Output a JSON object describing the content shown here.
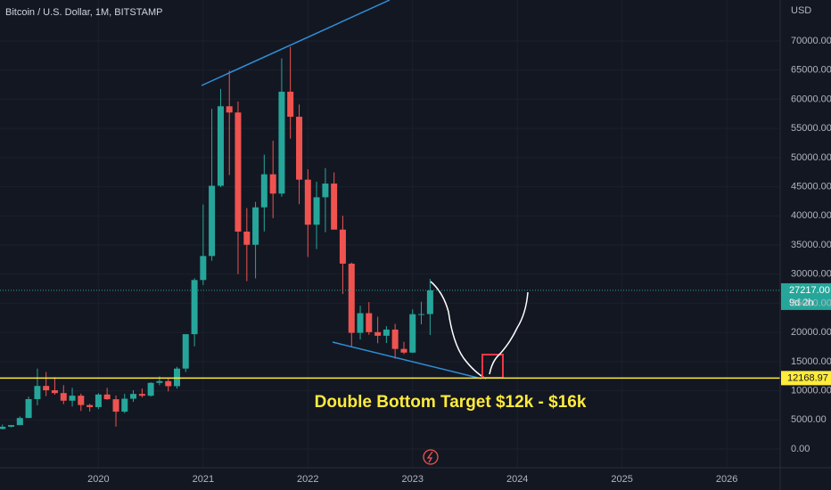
{
  "chart_data": {
    "type": "candlestick",
    "title": "Bitcoin / U.S. Dollar, 1M, BITSTAMP",
    "currency": "USD",
    "up_color": "#26a69a",
    "down_color": "#ef5350",
    "grid": true,
    "x": [
      2019.083,
      2019.167,
      2019.25,
      2019.333,
      2019.417,
      2019.5,
      2019.583,
      2019.667,
      2019.75,
      2019.833,
      2019.917,
      2020,
      2020.083,
      2020.167,
      2020.25,
      2020.333,
      2020.417,
      2020.5,
      2020.583,
      2020.667,
      2020.75,
      2020.833,
      2020.917,
      2021,
      2021.083,
      2021.167,
      2021.25,
      2021.333,
      2021.417,
      2021.5,
      2021.583,
      2021.667,
      2021.75,
      2021.833,
      2021.917,
      2022,
      2022.083,
      2022.167,
      2022.25,
      2022.333,
      2022.417,
      2022.5,
      2022.583,
      2022.667,
      2022.75,
      2022.833,
      2022.917,
      2023,
      2023.083,
      2023.167
    ],
    "open": [
      3440,
      3820,
      4100,
      5320,
      8560,
      10820,
      10080,
      9600,
      8290,
      9150,
      7540,
      7190,
      9350,
      8540,
      6410,
      8630,
      9450,
      9140,
      11350,
      11650,
      10780,
      13800,
      19700,
      28990,
      33110,
      45160,
      58800,
      57730,
      37300,
      35040,
      41460,
      47130,
      43820,
      61300,
      57000,
      46210,
      38480,
      43190,
      45540,
      37640,
      31800,
      19930,
      23300,
      20050,
      19430,
      20490,
      17170,
      16540,
      23130,
      23150
    ],
    "high": [
      4200,
      4100,
      5600,
      9000,
      13800,
      13200,
      12330,
      10950,
      10500,
      9500,
      7750,
      9580,
      10500,
      9180,
      9470,
      10080,
      10380,
      11440,
      12470,
      12100,
      14100,
      19480,
      29300,
      41950,
      58350,
      61780,
      64900,
      59600,
      41330,
      42400,
      50500,
      52900,
      67000,
      69000,
      59100,
      47990,
      45850,
      48200,
      47450,
      40000,
      31990,
      24600,
      25200,
      22700,
      21080,
      21470,
      18390,
      23950,
      25250,
      29180
    ],
    "low": [
      3380,
      3730,
      4100,
      5320,
      7500,
      9070,
      9320,
      7700,
      7300,
      6520,
      6430,
      6850,
      8450,
      3850,
      6150,
      8100,
      8850,
      8980,
      10930,
      9880,
      10370,
      13200,
      17600,
      28130,
      32300,
      44950,
      47000,
      30000,
      28800,
      29280,
      37330,
      39600,
      43290,
      53250,
      42000,
      32950,
      34300,
      37200,
      37700,
      26600,
      17600,
      18800,
      19600,
      18150,
      18190,
      15480,
      16260,
      16500,
      21400,
      19550
    ],
    "close": [
      3820,
      4100,
      5320,
      8560,
      10820,
      10080,
      9600,
      8290,
      9150,
      7540,
      7190,
      9350,
      8540,
      6410,
      8630,
      9450,
      9140,
      11350,
      11650,
      10780,
      13800,
      19700,
      28990,
      33110,
      45160,
      58800,
      57730,
      37300,
      35040,
      41460,
      47130,
      43820,
      61300,
      57000,
      46210,
      38480,
      43190,
      45540,
      37640,
      31800,
      19930,
      23300,
      20050,
      19430,
      20490,
      17170,
      16540,
      23130,
      23150,
      27217
    ],
    "xlim": [
      2019.06,
      2026.51
    ],
    "xticks": [
      2020,
      2021,
      2022,
      2023,
      2024,
      2025,
      2026
    ],
    "ylim": [
      -3210,
      77030
    ],
    "yticks": [
      {
        "value": 0,
        "label": "0.00"
      },
      {
        "value": 5000,
        "label": "5000.00"
      },
      {
        "value": 10000,
        "label": "10000.00"
      },
      {
        "value": 15000,
        "label": "15000.00"
      },
      {
        "value": 20000,
        "label": "20000.00"
      },
      {
        "value": 25000,
        "label": "25000.00"
      },
      {
        "value": 30000,
        "label": "30000.00"
      },
      {
        "value": 35000,
        "label": "35000.00"
      },
      {
        "value": 40000,
        "label": "40000.00"
      },
      {
        "value": 45000,
        "label": "45000.00"
      },
      {
        "value": 50000,
        "label": "50000.00"
      },
      {
        "value": 55000,
        "label": "55000.00"
      },
      {
        "value": 60000,
        "label": "60000.00"
      },
      {
        "value": 65000,
        "label": "65000.00"
      },
      {
        "value": 70000,
        "label": "70000.00"
      }
    ],
    "current_price": {
      "value": 27217,
      "label": "27217.00",
      "countdown": "9d 2h",
      "color": "#26a69a"
    },
    "support_line": {
      "value": 12168.97,
      "color": "#ffeb3b"
    },
    "annotation": "Double Bottom Target $12k - $16k"
  }
}
